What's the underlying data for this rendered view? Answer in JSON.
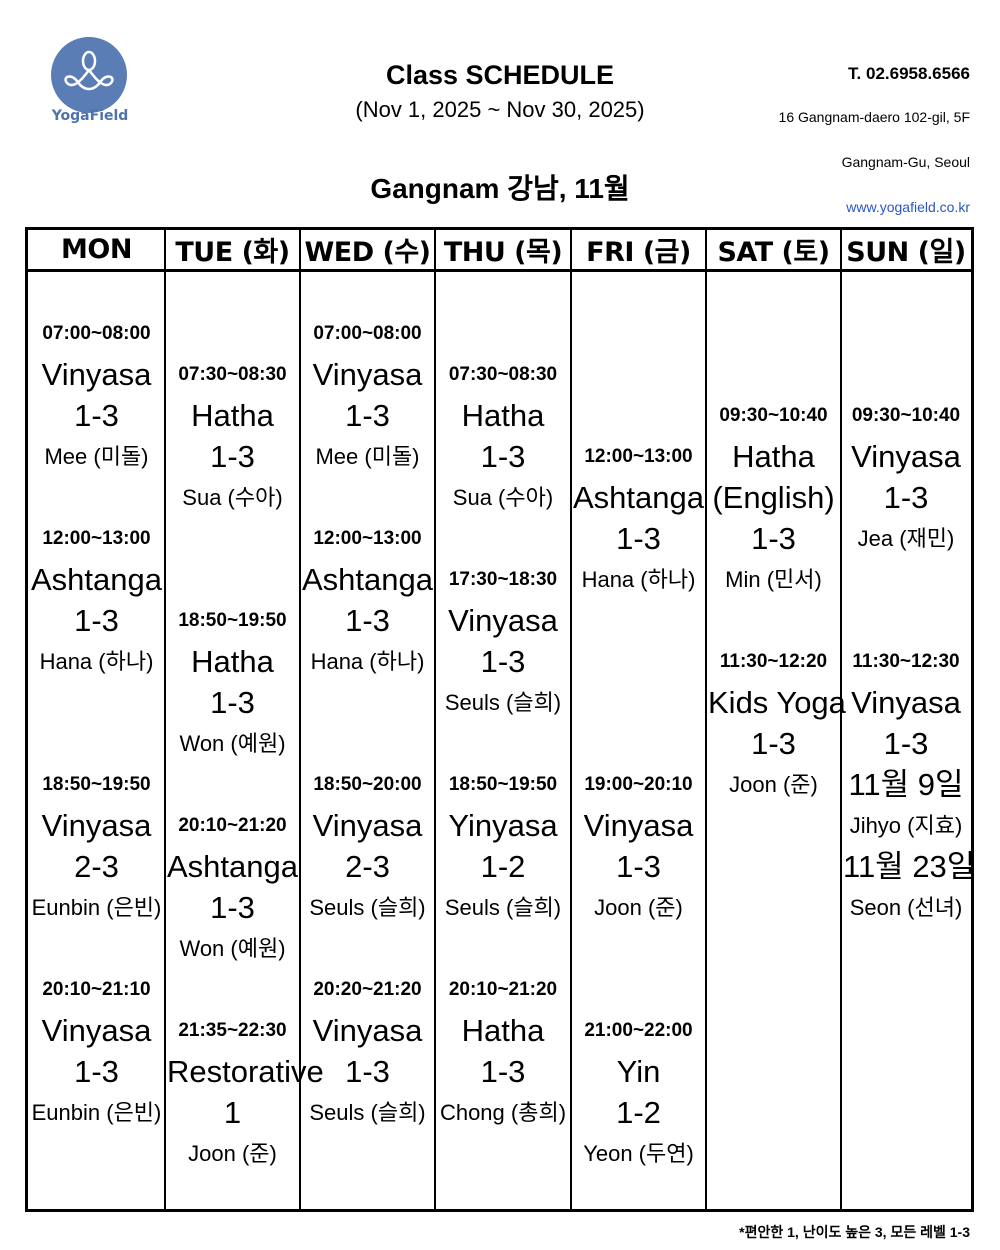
{
  "brand": {
    "name": "YogaField",
    "logo_color": "#5a7db6"
  },
  "header": {
    "title": "Class SCHEDULE",
    "date_range": "(Nov 1, 2025 ~ Nov 30,  2025)",
    "branch": "Gangnam 강남, 11월",
    "phone": "T. 02.6958.6566",
    "address_line1": "16 Gangnam-daero 102-gil, 5F",
    "address_line2": "Gangnam-Gu, Seoul",
    "website": "www.yogafield.co.kr"
  },
  "schedule": {
    "days": [
      "MON",
      "TUE (화)",
      "WED (수)",
      "THU (목)",
      "FRI (금)",
      "SAT (토)",
      "SUN (일)"
    ],
    "columns": [
      [
        "07:00~08:00",
        "Vinyasa",
        "1-3",
        "Mee (미돌)",
        "",
        "12:00~13:00",
        "Ashtanga",
        "1-3",
        "Hana (하나)",
        "",
        "",
        "18:50~19:50",
        "Vinyasa",
        "2-3",
        "Eunbin (은빈)",
        "",
        "20:10~21:10",
        "Vinyasa",
        "1-3",
        "Eunbin (은빈)",
        ""
      ],
      [
        "",
        "07:30~08:30",
        "Hatha",
        "1-3",
        "Sua (수아)",
        "",
        "",
        "18:50~19:50",
        "Hatha",
        "1-3",
        "Won (예원)",
        "",
        "20:10~21:20",
        "Ashtanga",
        "1-3",
        "Won (예원)",
        "",
        "21:35~22:30",
        "Restorative",
        "1",
        "Joon (준)"
      ],
      [
        "07:00~08:00",
        "Vinyasa",
        "1-3",
        "Mee (미돌)",
        "",
        "12:00~13:00",
        "Ashtanga",
        "1-3",
        "Hana (하나)",
        "",
        "",
        "18:50~20:00",
        "Vinyasa",
        "2-3",
        "Seuls (슬희)",
        "",
        "20:20~21:20",
        "Vinyasa",
        "1-3",
        "Seuls (슬희)",
        ""
      ],
      [
        "",
        "07:30~08:30",
        "Hatha",
        "1-3",
        "Sua (수아)",
        "",
        "17:30~18:30",
        "Vinyasa",
        "1-3",
        "Seuls (슬희)",
        "",
        "18:50~19:50",
        "Yinyasa",
        "1-2",
        "Seuls (슬희)",
        "",
        "20:10~21:20",
        "Hatha",
        "1-3",
        "Chong (총희)",
        ""
      ],
      [
        "",
        "",
        "",
        "12:00~13:00",
        "Ashtanga",
        "1-3",
        "Hana (하나)",
        "",
        "",
        "",
        "",
        "19:00~20:10",
        "Vinyasa",
        "1-3",
        "Joon (준)",
        "",
        "",
        "21:00~22:00",
        "Yin",
        "1-2",
        "Yeon (두연)"
      ],
      [
        "",
        "",
        "09:30~10:40",
        "Hatha",
        "(English)",
        "1-3",
        "Min (민서)",
        "",
        "11:30~12:20",
        "Kids Yoga",
        "1-3",
        "Joon (준)",
        "",
        "",
        "",
        "",
        "",
        "",
        "",
        "",
        ""
      ],
      [
        "",
        "",
        "09:30~10:40",
        "Vinyasa",
        "1-3",
        "Jea (재민)",
        "",
        "",
        "11:30~12:30",
        "Vinyasa",
        "1-3",
        "11월 9일",
        "Jihyo (지효)",
        "11월 23일",
        "Seon (선녀)",
        "",
        "",
        "",
        "",
        "",
        ""
      ]
    ]
  },
  "footnote": "*편안한 1, 난이도 높은 3, 모든 레벨 1-3"
}
